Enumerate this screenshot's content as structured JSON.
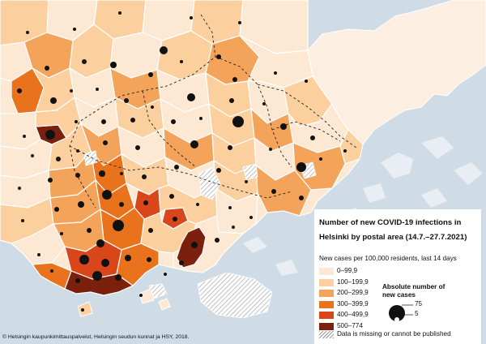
{
  "title": "Number of new COVID-19 infections in Helsinki by postal area (14.7.–27.7.2021)",
  "subtitle": "New cases per 100,000 residents, last 14 days",
  "bins": [
    {
      "label": "0–99,9",
      "color": "#fde8d3"
    },
    {
      "label": "100–199,9",
      "color": "#fbcf9e"
    },
    {
      "label": "200–299,9",
      "color": "#f4a35a"
    },
    {
      "label": "300–399,9",
      "color": "#e8731c"
    },
    {
      "label": "400–499,9",
      "color": "#d8461a"
    },
    {
      "label": "500–774",
      "color": "#7a200d"
    }
  ],
  "missing_label": "Data is missing or cannot be published",
  "size_legend": {
    "title": "Absolute number of new cases",
    "large_value": "75",
    "small_value": "5"
  },
  "source": "© Helsingin kaupunkimittauspalvelut, Helsingin seudun kunnat ja HSY, 2018.",
  "colors": {
    "water": "#cfdce6",
    "land_outside": "#fdeee2",
    "boundary": "#ffffff",
    "dots": "#111111"
  }
}
